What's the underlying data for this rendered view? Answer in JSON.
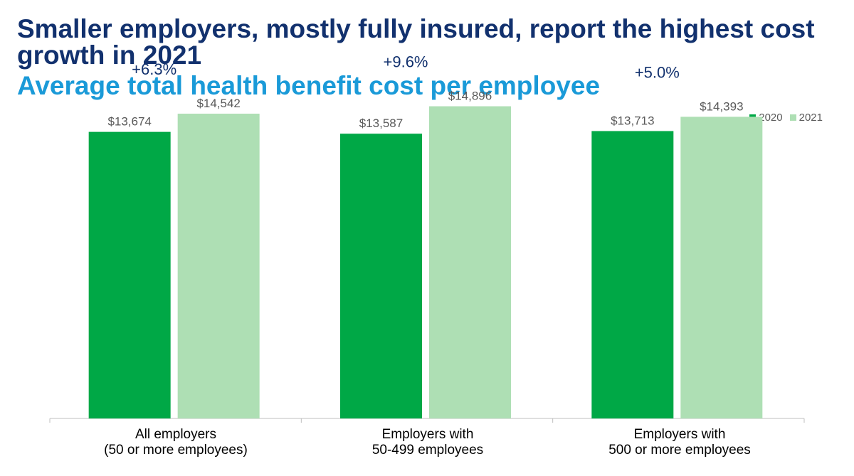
{
  "header": {
    "title": "Smaller employers, mostly fully insured, report the highest cost growth in 2021",
    "subtitle": "Average total health benefit cost per employee"
  },
  "colors": {
    "title": "#12316e",
    "subtitle": "#1a9ad8",
    "series_2020": "#00a846",
    "series_2021": "#aedfb4",
    "growth_label": "#12316e",
    "value_label": "#595959"
  },
  "chart_data": {
    "type": "bar",
    "categories": [
      [
        "All employers",
        "(50 or more employees)"
      ],
      [
        "Employers with",
        "50-499 employees"
      ],
      [
        "Employers with",
        "500 or more employees"
      ]
    ],
    "series": [
      {
        "name": "2020",
        "values": [
          13674,
          13587,
          13713
        ],
        "labels": [
          "$13,674",
          "$13,587",
          "$13,713"
        ]
      },
      {
        "name": "2021",
        "values": [
          14542,
          14896,
          14393
        ],
        "labels": [
          "$14,542",
          "$14,896",
          "$14,393"
        ]
      }
    ],
    "growth": [
      "+6.3%",
      "+9.6%",
      "+5.0%"
    ],
    "ylim": [
      0,
      20000
    ],
    "grid": false,
    "legend_position": "top-right"
  }
}
